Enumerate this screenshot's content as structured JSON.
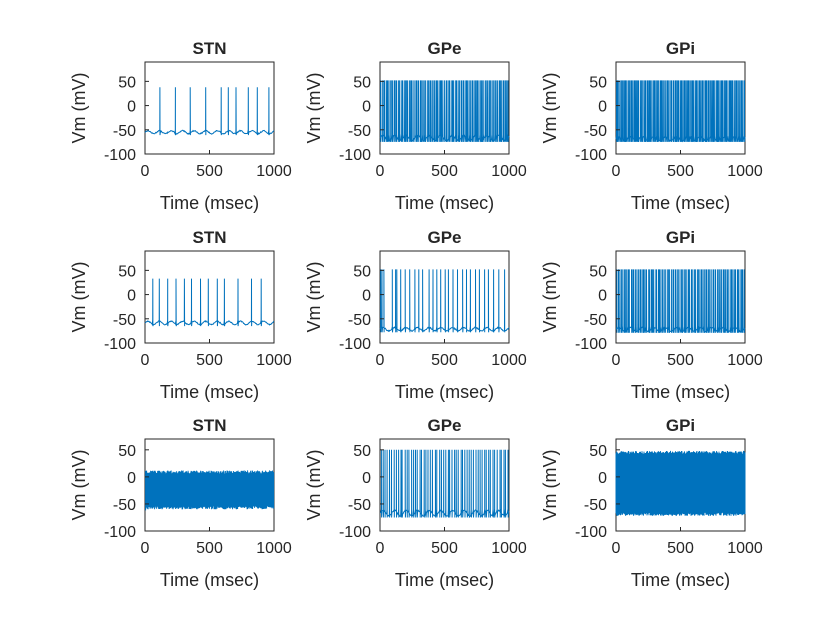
{
  "figure": {
    "background": "#ffffff",
    "axis_color": "#262626",
    "line_color": "#0072BD"
  },
  "chart_data": [
    {
      "type": "line",
      "title": "STN",
      "xlabel": "Time (msec)",
      "ylabel": "Vm (mV)",
      "xlim": [
        0,
        1000
      ],
      "ylim": [
        -100,
        90
      ],
      "xticks": [
        "0",
        "500",
        "1000"
      ],
      "yticks": [
        "50",
        "0",
        "-50",
        "-100"
      ],
      "trace": {
        "pattern": "spikes",
        "baseline_mV": [
          -58,
          -52
        ],
        "peak_mV": 38,
        "spike_times_ms": [
          115,
          235,
          350,
          470,
          590,
          645,
          705,
          800,
          870,
          960
        ]
      }
    },
    {
      "type": "line",
      "title": "GPe",
      "xlabel": "Time (msec)",
      "ylabel": "Vm (mV)",
      "xlim": [
        0,
        1000
      ],
      "ylim": [
        -100,
        90
      ],
      "xticks": [
        "0",
        "500",
        "1000"
      ],
      "yticks": [
        "50",
        "0",
        "-50",
        "-100"
      ],
      "trace": {
        "pattern": "spikes",
        "baseline_mV": [
          -72,
          -62
        ],
        "peak_mV": 52,
        "spike_count": 95
      }
    },
    {
      "type": "line",
      "title": "GPi",
      "xlabel": "Time (msec)",
      "ylabel": "Vm (mV)",
      "xlim": [
        0,
        1000
      ],
      "ylim": [
        -100,
        90
      ],
      "xticks": [
        "0",
        "500",
        "1000"
      ],
      "yticks": [
        "50",
        "0",
        "-50",
        "-100"
      ],
      "trace": {
        "pattern": "spikes",
        "baseline_mV": [
          -72,
          -65
        ],
        "peak_mV": 52,
        "spike_count": 110
      }
    },
    {
      "type": "line",
      "title": "STN",
      "xlabel": "Time (msec)",
      "ylabel": "Vm (mV)",
      "xlim": [
        0,
        1000
      ],
      "ylim": [
        -100,
        90
      ],
      "xticks": [
        "0",
        "500",
        "1000"
      ],
      "yticks": [
        "50",
        "0",
        "-50",
        "-100"
      ],
      "trace": {
        "pattern": "spikes",
        "baseline_mV": [
          -62,
          -55
        ],
        "peak_mV": 33,
        "spike_times_ms": [
          60,
          110,
          175,
          240,
          305,
          360,
          430,
          490,
          560,
          615,
          720,
          825,
          900
        ]
      }
    },
    {
      "type": "line",
      "title": "GPe",
      "xlabel": "Time (msec)",
      "ylabel": "Vm (mV)",
      "xlim": [
        0,
        1000
      ],
      "ylim": [
        -100,
        90
      ],
      "xticks": [
        "0",
        "500",
        "1000"
      ],
      "yticks": [
        "50",
        "0",
        "-50",
        "-100"
      ],
      "trace": {
        "pattern": "spikes",
        "baseline_mV": [
          -75,
          -68
        ],
        "peak_mV": 52,
        "spike_count": 30,
        "spike_times_ms": [
          5,
          15,
          30,
          95,
          120,
          130,
          160,
          195,
          230,
          270,
          300,
          330,
          380,
          410,
          440,
          470,
          505,
          530,
          565,
          600,
          640,
          670,
          700,
          740,
          770,
          810,
          840,
          880,
          920,
          965
        ]
      }
    },
    {
      "type": "line",
      "title": "GPi",
      "xlabel": "Time (msec)",
      "ylabel": "Vm (mV)",
      "xlim": [
        0,
        1000
      ],
      "ylim": [
        -100,
        90
      ],
      "xticks": [
        "0",
        "500",
        "1000"
      ],
      "yticks": [
        "50",
        "0",
        "-50",
        "-100"
      ],
      "trace": {
        "pattern": "spikes",
        "baseline_mV": [
          -76,
          -68
        ],
        "peak_mV": 52,
        "spike_count": 90
      }
    },
    {
      "type": "line",
      "title": "STN",
      "xlabel": "Time (msec)",
      "ylabel": "Vm (mV)",
      "xlim": [
        0,
        1000
      ],
      "ylim": [
        -100,
        70
      ],
      "xticks": [
        "0",
        "500",
        "1000"
      ],
      "yticks": [
        "50",
        "0",
        "-50",
        "-100"
      ],
      "trace": {
        "pattern": "band",
        "lower_mV": -60,
        "upper_mV": 12,
        "start_ms": 5
      }
    },
    {
      "type": "line",
      "title": "GPe",
      "xlabel": "Time (msec)",
      "ylabel": "Vm (mV)",
      "xlim": [
        0,
        1000
      ],
      "ylim": [
        -100,
        70
      ],
      "xticks": [
        "0",
        "500",
        "1000"
      ],
      "yticks": [
        "50",
        "0",
        "-50",
        "-100"
      ],
      "trace": {
        "pattern": "spikes",
        "baseline_mV": [
          -72,
          -62
        ],
        "peak_mV": 50,
        "spike_count": 60
      }
    },
    {
      "type": "line",
      "title": "GPi",
      "xlabel": "Time (msec)",
      "ylabel": "Vm (mV)",
      "xlim": [
        0,
        1000
      ],
      "ylim": [
        -100,
        70
      ],
      "xticks": [
        "0",
        "500",
        "1000"
      ],
      "yticks": [
        "50",
        "0",
        "-50",
        "-100"
      ],
      "trace": {
        "pattern": "band",
        "lower_mV": -72,
        "upper_mV": 48,
        "start_ms": 0
      }
    }
  ]
}
